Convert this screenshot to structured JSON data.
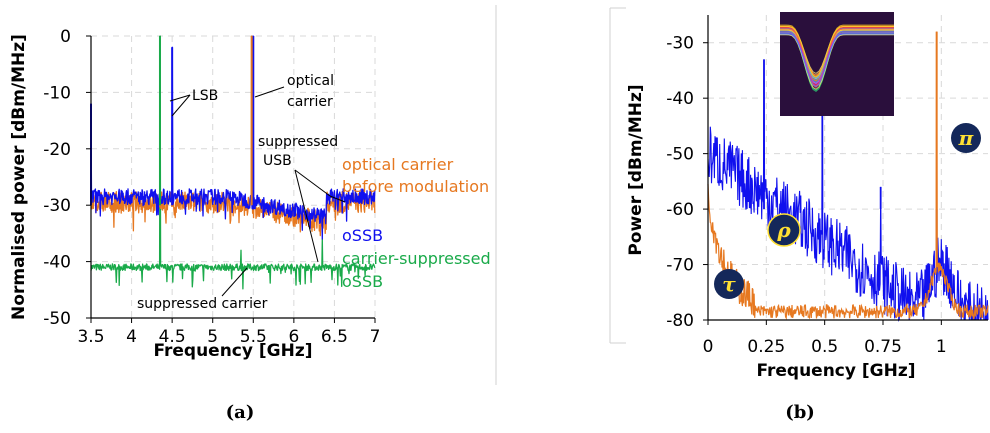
{
  "colors": {
    "blue": "#1010ee",
    "orange": "#e67820",
    "green": "#1aaa4a",
    "badge": "#14285a",
    "badge_text": "#ffe033"
  },
  "caption_a": "(a)",
  "caption_b": "(b)",
  "chart_data": [
    {
      "type": "line",
      "xlabel": "Frequency [GHz]",
      "ylabel": "Normalised power [dBm/MHz]",
      "xlim": [
        3.5,
        7
      ],
      "ylim": [
        -50,
        0
      ],
      "x_ticks": [
        "3.5",
        "4",
        "4.5",
        "5",
        "5.5",
        "6",
        "6.5",
        "7"
      ],
      "y_ticks": [
        "0",
        "-10",
        "-20",
        "-30",
        "-40",
        "-50"
      ],
      "grid": true,
      "series": [
        {
          "name": "optical carrier before modulation",
          "color": "#e67820",
          "noise_floor": -29.5,
          "peaks": [
            [
              5.48,
              0
            ]
          ]
        },
        {
          "name": "oSSB",
          "color": "#1010ee",
          "noise_floor": -28.5,
          "peaks": [
            [
              3.5,
              -12
            ],
            [
              4.5,
              -2
            ],
            [
              5.5,
              0
            ],
            [
              6.35,
              -36
            ]
          ]
        },
        {
          "name": "carrier-suppressed oSSB",
          "color": "#1aaa4a",
          "noise_floor": -41,
          "peaks": [
            [
              4.35,
              0
            ],
            [
              5.35,
              -38
            ],
            [
              6.35,
              -36
            ]
          ]
        }
      ],
      "annotations": {
        "lsb": "LSB",
        "optical_carrier": [
          "optical",
          "carrier"
        ],
        "suppressed_usb": [
          "suppressed",
          "USB"
        ],
        "suppressed_carrier": "suppressed carrier",
        "legend_orange": [
          "optical carrier",
          "before modulation"
        ],
        "legend_blue": "oSSB",
        "legend_green": [
          "carrier-suppressed",
          "oSSB"
        ]
      }
    },
    {
      "type": "line",
      "xlabel": "Frequency [GHz]",
      "ylabel": "Power [dBm/MHz]",
      "xlim": [
        0,
        1.2
      ],
      "ylim": [
        -80,
        -25
      ],
      "x_ticks": [
        "0",
        "0.25",
        "0.5",
        "0.75",
        "1"
      ],
      "y_ticks": [
        "-30",
        "-40",
        "-50",
        "-60",
        "-70",
        "-80"
      ],
      "grid": true,
      "series": [
        {
          "name": "blue",
          "color": "#1010ee",
          "peaks": [
            [
              0.24,
              -33
            ],
            [
              0.49,
              -43
            ],
            [
              0.74,
              -56
            ],
            [
              0.98,
              -70
            ]
          ]
        },
        {
          "name": "orange",
          "color": "#e67820",
          "peaks": [
            [
              0.98,
              -28
            ]
          ]
        }
      ],
      "badges": {
        "pi": "π",
        "rho": "ρ",
        "tau": "τ"
      }
    }
  ]
}
